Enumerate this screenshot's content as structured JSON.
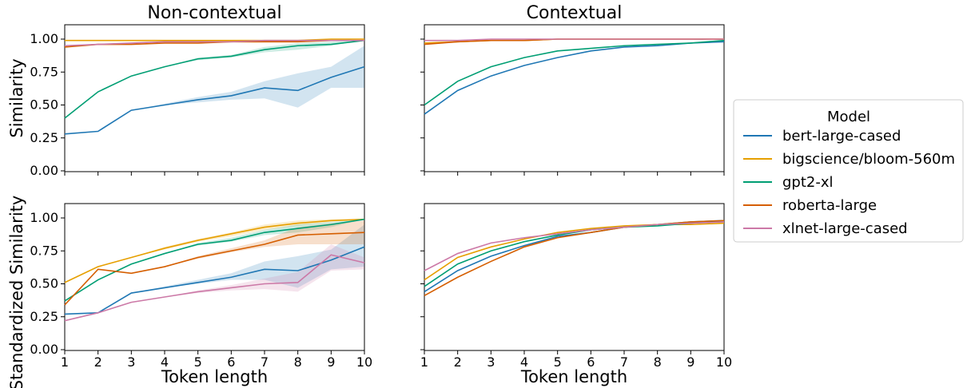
{
  "colors": {
    "bert-large-cased": "#1f77b4",
    "bigscience/bloom-560m": "#e69f00",
    "gpt2-xl": "#009e73",
    "roberta-large": "#d55e00",
    "xlnet-large-cased": "#cc79a7"
  },
  "legend": {
    "title": "Model",
    "entries": [
      "bert-large-cased",
      "bigscience/bloom-560m",
      "gpt2-xl",
      "roberta-large",
      "xlnet-large-cased"
    ]
  },
  "chart_data": [
    {
      "type": "line",
      "title": "Non-contextual",
      "ylabel": "Similarity",
      "xlabel": "",
      "xlim": [
        1,
        10
      ],
      "ylim": [
        0,
        1.0
      ],
      "x": [
        1,
        2,
        3,
        4,
        5,
        6,
        7,
        8,
        9,
        10
      ],
      "x_ticks": [
        "1",
        "2",
        "3",
        "4",
        "5",
        "6",
        "7",
        "8",
        "9",
        "10"
      ],
      "y_ticks": [
        "0.00",
        "0.25",
        "0.50",
        "0.75",
        "1.00"
      ],
      "series": [
        {
          "name": "bert-large-cased",
          "values": [
            0.28,
            0.3,
            0.46,
            0.5,
            0.54,
            0.57,
            0.63,
            0.61,
            0.71,
            0.79
          ],
          "lower": [
            0.28,
            0.3,
            0.46,
            0.5,
            0.52,
            0.54,
            0.55,
            0.48,
            0.63,
            0.63
          ],
          "upper": [
            0.28,
            0.3,
            0.46,
            0.51,
            0.56,
            0.6,
            0.68,
            0.74,
            0.79,
            0.95
          ]
        },
        {
          "name": "bigscience/bloom-560m",
          "values": [
            0.99,
            0.99,
            0.99,
            0.99,
            0.99,
            0.99,
            0.99,
            0.99,
            1.0,
            1.0
          ]
        },
        {
          "name": "gpt2-xl",
          "values": [
            0.4,
            0.6,
            0.72,
            0.79,
            0.85,
            0.87,
            0.92,
            0.95,
            0.96,
            0.99
          ],
          "lower": [
            0.4,
            0.6,
            0.72,
            0.79,
            0.84,
            0.86,
            0.9,
            0.92,
            0.95,
            0.99
          ],
          "upper": [
            0.4,
            0.6,
            0.72,
            0.79,
            0.86,
            0.88,
            0.94,
            0.97,
            0.98,
            0.99
          ]
        },
        {
          "name": "roberta-large",
          "values": [
            0.94,
            0.96,
            0.96,
            0.97,
            0.97,
            0.98,
            0.98,
            0.98,
            0.99,
            0.99
          ]
        },
        {
          "name": "xlnet-large-cased",
          "values": [
            0.95,
            0.96,
            0.97,
            0.98,
            0.98,
            0.98,
            0.99,
            0.99,
            0.99,
            0.99
          ]
        }
      ]
    },
    {
      "type": "line",
      "title": "Contextual",
      "ylabel": "",
      "xlabel": "",
      "xlim": [
        1,
        10
      ],
      "ylim": [
        0,
        1.0
      ],
      "x": [
        1,
        2,
        3,
        4,
        5,
        6,
        7,
        8,
        9,
        10
      ],
      "x_ticks": [
        "1",
        "2",
        "3",
        "4",
        "5",
        "6",
        "7",
        "8",
        "9",
        "10"
      ],
      "y_ticks": [],
      "series": [
        {
          "name": "bert-large-cased",
          "values": [
            0.43,
            0.61,
            0.72,
            0.8,
            0.86,
            0.91,
            0.94,
            0.95,
            0.97,
            0.98
          ]
        },
        {
          "name": "bigscience/bloom-560m",
          "values": [
            0.97,
            0.98,
            0.99,
            0.99,
            1.0,
            1.0,
            1.0,
            1.0,
            1.0,
            1.0
          ]
        },
        {
          "name": "gpt2-xl",
          "values": [
            0.5,
            0.68,
            0.79,
            0.86,
            0.91,
            0.93,
            0.95,
            0.96,
            0.97,
            0.99
          ]
        },
        {
          "name": "roberta-large",
          "values": [
            0.96,
            0.98,
            0.99,
            0.99,
            1.0,
            1.0,
            1.0,
            1.0,
            1.0,
            1.0
          ]
        },
        {
          "name": "xlnet-large-cased",
          "values": [
            0.99,
            0.99,
            1.0,
            1.0,
            1.0,
            1.0,
            1.0,
            1.0,
            1.0,
            1.0
          ]
        }
      ]
    },
    {
      "type": "line",
      "title": "",
      "ylabel": "Standardized Similarity",
      "xlabel": "Token length",
      "xlim": [
        1,
        10
      ],
      "ylim": [
        0,
        1.0
      ],
      "x": [
        1,
        2,
        3,
        4,
        5,
        6,
        7,
        8,
        9,
        10
      ],
      "x_ticks": [
        "1",
        "2",
        "3",
        "4",
        "5",
        "6",
        "7",
        "8",
        "9",
        "10"
      ],
      "y_ticks": [
        "0.00",
        "0.25",
        "0.50",
        "0.75",
        "1.00"
      ],
      "series": [
        {
          "name": "bert-large-cased",
          "values": [
            0.27,
            0.28,
            0.43,
            0.47,
            0.51,
            0.55,
            0.61,
            0.6,
            0.68,
            0.78
          ],
          "lower": [
            0.27,
            0.28,
            0.43,
            0.47,
            0.5,
            0.53,
            0.53,
            0.47,
            0.61,
            0.63
          ],
          "upper": [
            0.27,
            0.28,
            0.43,
            0.48,
            0.53,
            0.58,
            0.67,
            0.71,
            0.76,
            0.95
          ]
        },
        {
          "name": "bigscience/bloom-560m",
          "values": [
            0.51,
            0.63,
            0.7,
            0.77,
            0.83,
            0.88,
            0.93,
            0.96,
            0.98,
            0.99
          ],
          "lower": [
            0.51,
            0.63,
            0.7,
            0.76,
            0.82,
            0.86,
            0.91,
            0.94,
            0.97,
            0.99
          ],
          "upper": [
            0.51,
            0.63,
            0.7,
            0.78,
            0.84,
            0.89,
            0.95,
            0.98,
            0.99,
            0.99
          ]
        },
        {
          "name": "gpt2-xl",
          "values": [
            0.37,
            0.53,
            0.65,
            0.73,
            0.8,
            0.83,
            0.89,
            0.92,
            0.95,
            0.99
          ],
          "lower": [
            0.37,
            0.53,
            0.65,
            0.73,
            0.79,
            0.82,
            0.87,
            0.89,
            0.93,
            0.99
          ],
          "upper": [
            0.37,
            0.53,
            0.65,
            0.73,
            0.81,
            0.85,
            0.91,
            0.95,
            0.97,
            0.99
          ]
        },
        {
          "name": "roberta-large",
          "values": [
            0.34,
            0.61,
            0.58,
            0.63,
            0.7,
            0.75,
            0.8,
            0.87,
            0.88,
            0.89
          ],
          "lower": [
            0.34,
            0.61,
            0.58,
            0.63,
            0.69,
            0.74,
            0.78,
            0.8,
            0.8,
            0.8
          ],
          "upper": [
            0.34,
            0.61,
            0.58,
            0.63,
            0.71,
            0.77,
            0.83,
            0.93,
            0.96,
            0.98
          ]
        },
        {
          "name": "xlnet-large-cased",
          "values": [
            0.22,
            0.28,
            0.36,
            0.4,
            0.44,
            0.47,
            0.5,
            0.51,
            0.72,
            0.66
          ],
          "lower": [
            0.22,
            0.28,
            0.36,
            0.4,
            0.43,
            0.45,
            0.46,
            0.44,
            0.6,
            0.61
          ],
          "upper": [
            0.22,
            0.28,
            0.36,
            0.4,
            0.45,
            0.49,
            0.54,
            0.59,
            0.8,
            0.7
          ]
        }
      ]
    },
    {
      "type": "line",
      "title": "",
      "ylabel": "",
      "xlabel": "Token length",
      "xlim": [
        1,
        10
      ],
      "ylim": [
        0,
        1.0
      ],
      "x": [
        1,
        2,
        3,
        4,
        5,
        6,
        7,
        8,
        9,
        10
      ],
      "x_ticks": [
        "1",
        "2",
        "3",
        "4",
        "5",
        "6",
        "7",
        "8",
        "9",
        "10"
      ],
      "y_ticks": [],
      "series": [
        {
          "name": "bert-large-cased",
          "values": [
            0.44,
            0.6,
            0.71,
            0.79,
            0.86,
            0.89,
            0.93,
            0.95,
            0.97,
            0.98
          ]
        },
        {
          "name": "bigscience/bloom-560m",
          "values": [
            0.53,
            0.7,
            0.78,
            0.84,
            0.89,
            0.92,
            0.94,
            0.95,
            0.95,
            0.96
          ]
        },
        {
          "name": "gpt2-xl",
          "values": [
            0.48,
            0.65,
            0.75,
            0.82,
            0.87,
            0.91,
            0.93,
            0.94,
            0.96,
            0.98
          ]
        },
        {
          "name": "roberta-large",
          "values": [
            0.41,
            0.55,
            0.67,
            0.78,
            0.85,
            0.89,
            0.93,
            0.95,
            0.97,
            0.98
          ]
        },
        {
          "name": "xlnet-large-cased",
          "values": [
            0.6,
            0.73,
            0.81,
            0.85,
            0.88,
            0.91,
            0.93,
            0.95,
            0.96,
            0.97
          ]
        }
      ]
    }
  ]
}
